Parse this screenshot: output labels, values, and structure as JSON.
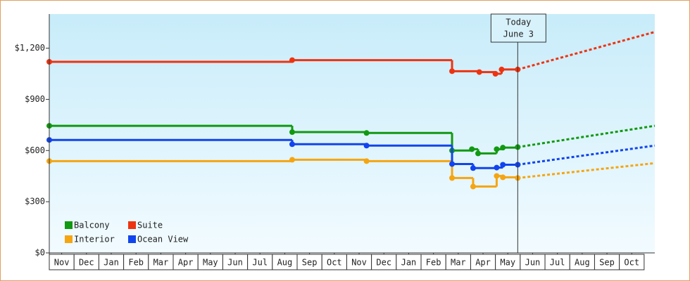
{
  "chart_data": {
    "type": "step-line",
    "annotation": {
      "line1": "Today",
      "line2": "June 3",
      "x": 18.9
    },
    "xlim": [
      0,
      24.43
    ],
    "xticks": [
      {
        "value": 0.5,
        "label": "Nov"
      },
      {
        "value": 1.5,
        "label": "Dec"
      },
      {
        "value": 2.5,
        "label": "Jan"
      },
      {
        "value": 3.5,
        "label": "Feb"
      },
      {
        "value": 4.5,
        "label": "Mar"
      },
      {
        "value": 5.5,
        "label": "Apr"
      },
      {
        "value": 6.5,
        "label": "May"
      },
      {
        "value": 7.5,
        "label": "Jun"
      },
      {
        "value": 8.5,
        "label": "Jul"
      },
      {
        "value": 9.5,
        "label": "Aug"
      },
      {
        "value": 10.5,
        "label": "Sep"
      },
      {
        "value": 11.5,
        "label": "Oct"
      },
      {
        "value": 12.5,
        "label": "Nov"
      },
      {
        "value": 13.5,
        "label": "Dec"
      },
      {
        "value": 14.5,
        "label": "Jan"
      },
      {
        "value": 15.5,
        "label": "Feb"
      },
      {
        "value": 16.5,
        "label": "Mar"
      },
      {
        "value": 17.5,
        "label": "Apr"
      },
      {
        "value": 18.5,
        "label": "May"
      },
      {
        "value": 19.5,
        "label": "Jun"
      },
      {
        "value": 20.5,
        "label": "Jul"
      },
      {
        "value": 21.5,
        "label": "Aug"
      },
      {
        "value": 22.5,
        "label": "Sep"
      },
      {
        "value": 23.5,
        "label": "Oct"
      }
    ],
    "ylim": [
      0,
      1400
    ],
    "yticks": [
      {
        "value": 0,
        "label": "$0"
      },
      {
        "value": 300,
        "label": "$300"
      },
      {
        "value": 600,
        "label": "$600"
      },
      {
        "value": 900,
        "label": "$900"
      },
      {
        "value": 1200,
        "label": "$1,200"
      }
    ],
    "legend": "bottom-left",
    "series": [
      {
        "name": "Balcony",
        "color": "#119911",
        "x": [
          0,
          9.8,
          12.8,
          16.25,
          17.05,
          17.3,
          18.05,
          18.3,
          18.9
        ],
        "values": [
          745,
          708,
          703,
          600,
          608,
          583,
          608,
          617,
          620
        ],
        "forecast": {
          "x": [
            24.43
          ],
          "values": [
            745
          ]
        }
      },
      {
        "name": "Suite",
        "color": "#ee3311",
        "x": [
          0,
          9.8,
          16.25,
          17.35,
          18.0,
          18.25,
          18.9
        ],
        "values": [
          1120,
          1130,
          1065,
          1060,
          1050,
          1075,
          1075
        ],
        "forecast": {
          "x": [
            24.43
          ],
          "values": [
            1295
          ]
        }
      },
      {
        "name": "Interior",
        "color": "#f5a511",
        "x": [
          0,
          9.8,
          12.8,
          16.25,
          17.1,
          18.05,
          18.3,
          18.9
        ],
        "values": [
          538,
          546,
          538,
          439,
          389,
          451,
          443,
          439
        ],
        "forecast": {
          "x": [
            24.43
          ],
          "values": [
            526
          ]
        }
      },
      {
        "name": "Ocean View",
        "color": "#1144ee",
        "x": [
          0,
          9.8,
          12.8,
          16.25,
          17.1,
          18.05,
          18.3,
          18.9
        ],
        "values": [
          662,
          637,
          629,
          521,
          497,
          500,
          517,
          517
        ],
        "forecast": {
          "x": [
            24.43
          ],
          "values": [
            629
          ]
        }
      }
    ]
  }
}
